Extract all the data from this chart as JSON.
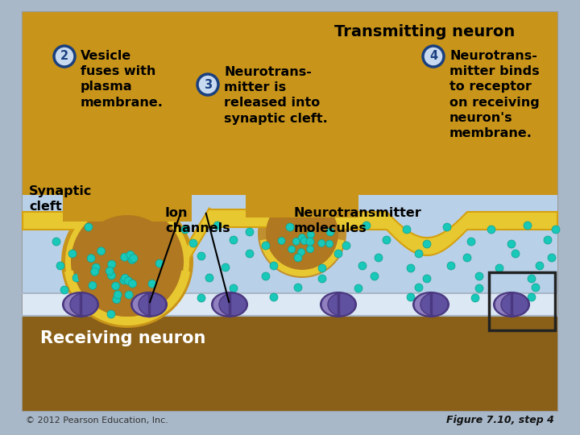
{
  "background_outer": "#a8b8c8",
  "background_color": "#b8c8d8",
  "title": "Transmitting neuron",
  "text2": "Vesicle\nfuses with\nplasma\nmembrane.",
  "text3": "Neurotrans-\nmitter is\nreleased into\nsynaptic cleft.",
  "text4": "Neurotrans-\nmitter binds\nto receptor\non receiving\nneuron's\nmembrane.",
  "synaptic_cleft_label": "Synaptic\ncleft",
  "ion_channels_label": "Ion\nchannels",
  "neurotransmitter_label": "Neurotransmitter\nmolecules",
  "receiving_neuron_label": "Receiving neuron",
  "footer_left": "© 2012 Pearson Education, Inc.",
  "footer_right": "Figure 7.10, step 4",
  "neuron_color": "#c8941a",
  "membrane_color": "#e8c830",
  "membrane_dark": "#d4a010",
  "dot_color": "#18c8b8",
  "dot_dark": "#10a090",
  "cleft_color": "#b8d0e8",
  "axon_color": "#dce8f4",
  "axon_outline": "#a8b8c8",
  "ion_channel_light": "#9080c0",
  "ion_channel_mid": "#6050a0",
  "ion_channel_dark": "#4a3880",
  "text_color": "#000000",
  "circle_label_bg": "#c8daf0",
  "circle_label_border": "#1a4080",
  "bottom_bg": "#8a6018",
  "white_line": "#e0e8f0"
}
